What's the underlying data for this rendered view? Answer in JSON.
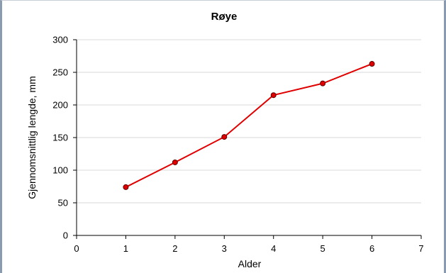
{
  "chart_data": {
    "type": "line",
    "title": "Røye",
    "xlabel": "Alder",
    "ylabel": "Gjennomsnittlig lengde, mm",
    "xlim": [
      0,
      7
    ],
    "ylim": [
      0,
      300
    ],
    "xticks": [
      0,
      1,
      2,
      3,
      4,
      5,
      6,
      7
    ],
    "yticks": [
      0,
      50,
      100,
      150,
      200,
      250,
      300
    ],
    "grid": true,
    "legend": "none",
    "series": [
      {
        "color": "#e00000",
        "x": [
          1,
          2,
          3,
          4,
          5,
          6
        ],
        "y": [
          74,
          112,
          151,
          215,
          233,
          263
        ]
      }
    ]
  }
}
